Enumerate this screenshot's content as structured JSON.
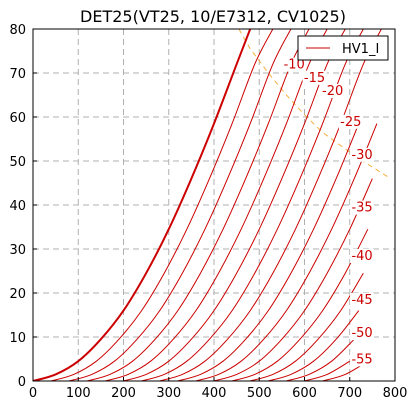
{
  "chart_data": {
    "type": "line",
    "title": "DET25(VT25, 10/E7312, CV1025)",
    "xlabel": "",
    "ylabel": "",
    "xlim": [
      0,
      800
    ],
    "ylim": [
      0,
      80
    ],
    "x_ticks": [
      "0",
      "100",
      "200",
      "300",
      "400",
      "500",
      "600",
      "700",
      "800"
    ],
    "y_ticks": [
      "0",
      "10",
      "20",
      "30",
      "40",
      "50",
      "60",
      "70",
      "80"
    ],
    "grid": true,
    "legend": {
      "placement": "top-right",
      "entries": [
        "HV1_I"
      ]
    },
    "colors": {
      "curve": "#cc0000",
      "dissipation": "#f5b041",
      "grid": "#b0b0b0"
    },
    "series": [
      {
        "grid_voltage": "0",
        "x": [
          0,
          50,
          100,
          150,
          200,
          250,
          300,
          350,
          400,
          450,
          480
        ],
        "y": [
          0,
          1.5,
          4.5,
          9.5,
          16.0,
          24.5,
          34.5,
          46.0,
          58.5,
          72.0,
          80.0
        ]
      },
      {
        "grid_voltage": "-5",
        "x": [
          40,
          90,
          140,
          190,
          240,
          290,
          340,
          390,
          440,
          490,
          530
        ],
        "y": [
          0,
          1.5,
          4.5,
          9.5,
          16.0,
          24.5,
          34.5,
          46.0,
          58.5,
          72.0,
          80.0
        ]
      },
      {
        "grid_voltage": "-10",
        "x": [
          80,
          130,
          180,
          230,
          280,
          330,
          380,
          430,
          480,
          530,
          570
        ],
        "y": [
          0,
          1.5,
          4.5,
          9.5,
          16.0,
          24.5,
          34.5,
          46.0,
          58.5,
          72.0,
          80.0
        ]
      },
      {
        "grid_voltage": "-15",
        "x": [
          120,
          170,
          220,
          270,
          320,
          370,
          420,
          470,
          520,
          570,
          610
        ],
        "y": [
          0,
          1.5,
          4.5,
          9.5,
          16.0,
          24.5,
          34.5,
          46.0,
          58.5,
          72.0,
          80.0
        ]
      },
      {
        "grid_voltage": "-20",
        "x": [
          160,
          210,
          260,
          310,
          360,
          410,
          460,
          510,
          560,
          610,
          650
        ],
        "y": [
          0,
          1.5,
          4.5,
          9.5,
          16.0,
          24.5,
          34.5,
          46.0,
          58.5,
          72.0,
          80.0
        ]
      },
      {
        "grid_voltage": "-25",
        "x": [
          200,
          250,
          300,
          350,
          400,
          450,
          500,
          550,
          600,
          650,
          690
        ],
        "y": [
          0,
          1.5,
          4.5,
          9.5,
          16.0,
          24.5,
          34.5,
          46.0,
          58.5,
          72.0,
          80.0
        ]
      },
      {
        "grid_voltage": "-30",
        "x": [
          240,
          290,
          340,
          390,
          440,
          490,
          540,
          590,
          640,
          690,
          730
        ],
        "y": [
          0,
          1.5,
          4.5,
          9.5,
          16.0,
          24.5,
          34.5,
          46.0,
          58.5,
          72.0,
          80.0
        ]
      },
      {
        "grid_voltage": "-35",
        "x": [
          280,
          330,
          380,
          430,
          480,
          530,
          580,
          630,
          680,
          730,
          770
        ],
        "y": [
          0,
          1.5,
          4.5,
          9.5,
          16.0,
          24.5,
          34.5,
          46.0,
          58.5,
          72.0,
          80.0
        ]
      },
      {
        "grid_voltage": "-40",
        "x": [
          320,
          370,
          420,
          470,
          520,
          570,
          620,
          670,
          720
        ],
        "y": [
          0,
          1.5,
          4.5,
          9.5,
          16.0,
          24.5,
          34.5,
          46.0,
          58.5
        ]
      },
      {
        "grid_voltage": "-45",
        "x": [
          360,
          410,
          460,
          510,
          560,
          610,
          660,
          710,
          760
        ],
        "y": [
          0,
          1.5,
          4.5,
          9.5,
          16.0,
          24.5,
          34.5,
          46.0,
          58.5
        ]
      },
      {
        "grid_voltage": "-50",
        "x": [
          400,
          450,
          500,
          550,
          600,
          650,
          700,
          750
        ],
        "y": [
          0,
          1.5,
          4.5,
          9.5,
          16.0,
          24.5,
          34.5,
          46.0
        ]
      },
      {
        "grid_voltage": "-55",
        "x": [
          440,
          490,
          540,
          590,
          640,
          690,
          740
        ],
        "y": [
          0,
          1.5,
          4.5,
          9.5,
          16.0,
          24.5,
          34.5
        ]
      },
      {
        "grid_voltage": "-60",
        "x": [
          480,
          530,
          580,
          630,
          680,
          730
        ],
        "y": [
          0,
          1.5,
          4.5,
          9.5,
          16.0,
          24.5
        ]
      },
      {
        "grid_voltage": "-65",
        "x": [
          520,
          570,
          620,
          670,
          720
        ],
        "y": [
          0,
          1.5,
          4.5,
          9.5,
          16.0
        ]
      },
      {
        "grid_voltage": "-70",
        "x": [
          560,
          610,
          660,
          710
        ],
        "y": [
          0,
          1.5,
          4.5,
          9.5
        ]
      },
      {
        "grid_voltage": "-75",
        "x": [
          600,
          650,
          700
        ],
        "y": [
          0,
          1.5,
          4.5
        ]
      },
      {
        "grid_voltage": "-80",
        "x": [
          640,
          690,
          740
        ],
        "y": [
          0,
          1.5,
          4.5
        ]
      }
    ],
    "curve_labels": [
      {
        "text": "-10",
        "x": 575,
        "y": 71
      },
      {
        "text": "-15",
        "x": 620,
        "y": 68
      },
      {
        "text": "-20",
        "x": 660,
        "y": 65
      },
      {
        "text": "-25",
        "x": 700,
        "y": 58
      },
      {
        "text": "-30",
        "x": 725,
        "y": 50.5
      },
      {
        "text": "-35",
        "x": 725,
        "y": 38.5
      },
      {
        "text": "-40",
        "x": 725,
        "y": 27.5
      },
      {
        "text": "-45",
        "x": 725,
        "y": 17.5
      },
      {
        "text": "-50",
        "x": 725,
        "y": 10
      },
      {
        "text": "-55",
        "x": 725,
        "y": 4
      }
    ],
    "dissipation_curve": {
      "x": [
        455,
        480,
        520,
        560,
        600,
        640,
        680,
        720,
        760,
        790
      ],
      "y": [
        80,
        75.5,
        70.0,
        65.0,
        60.5,
        56.5,
        53.5,
        50.5,
        48.0,
        46.0
      ]
    }
  }
}
